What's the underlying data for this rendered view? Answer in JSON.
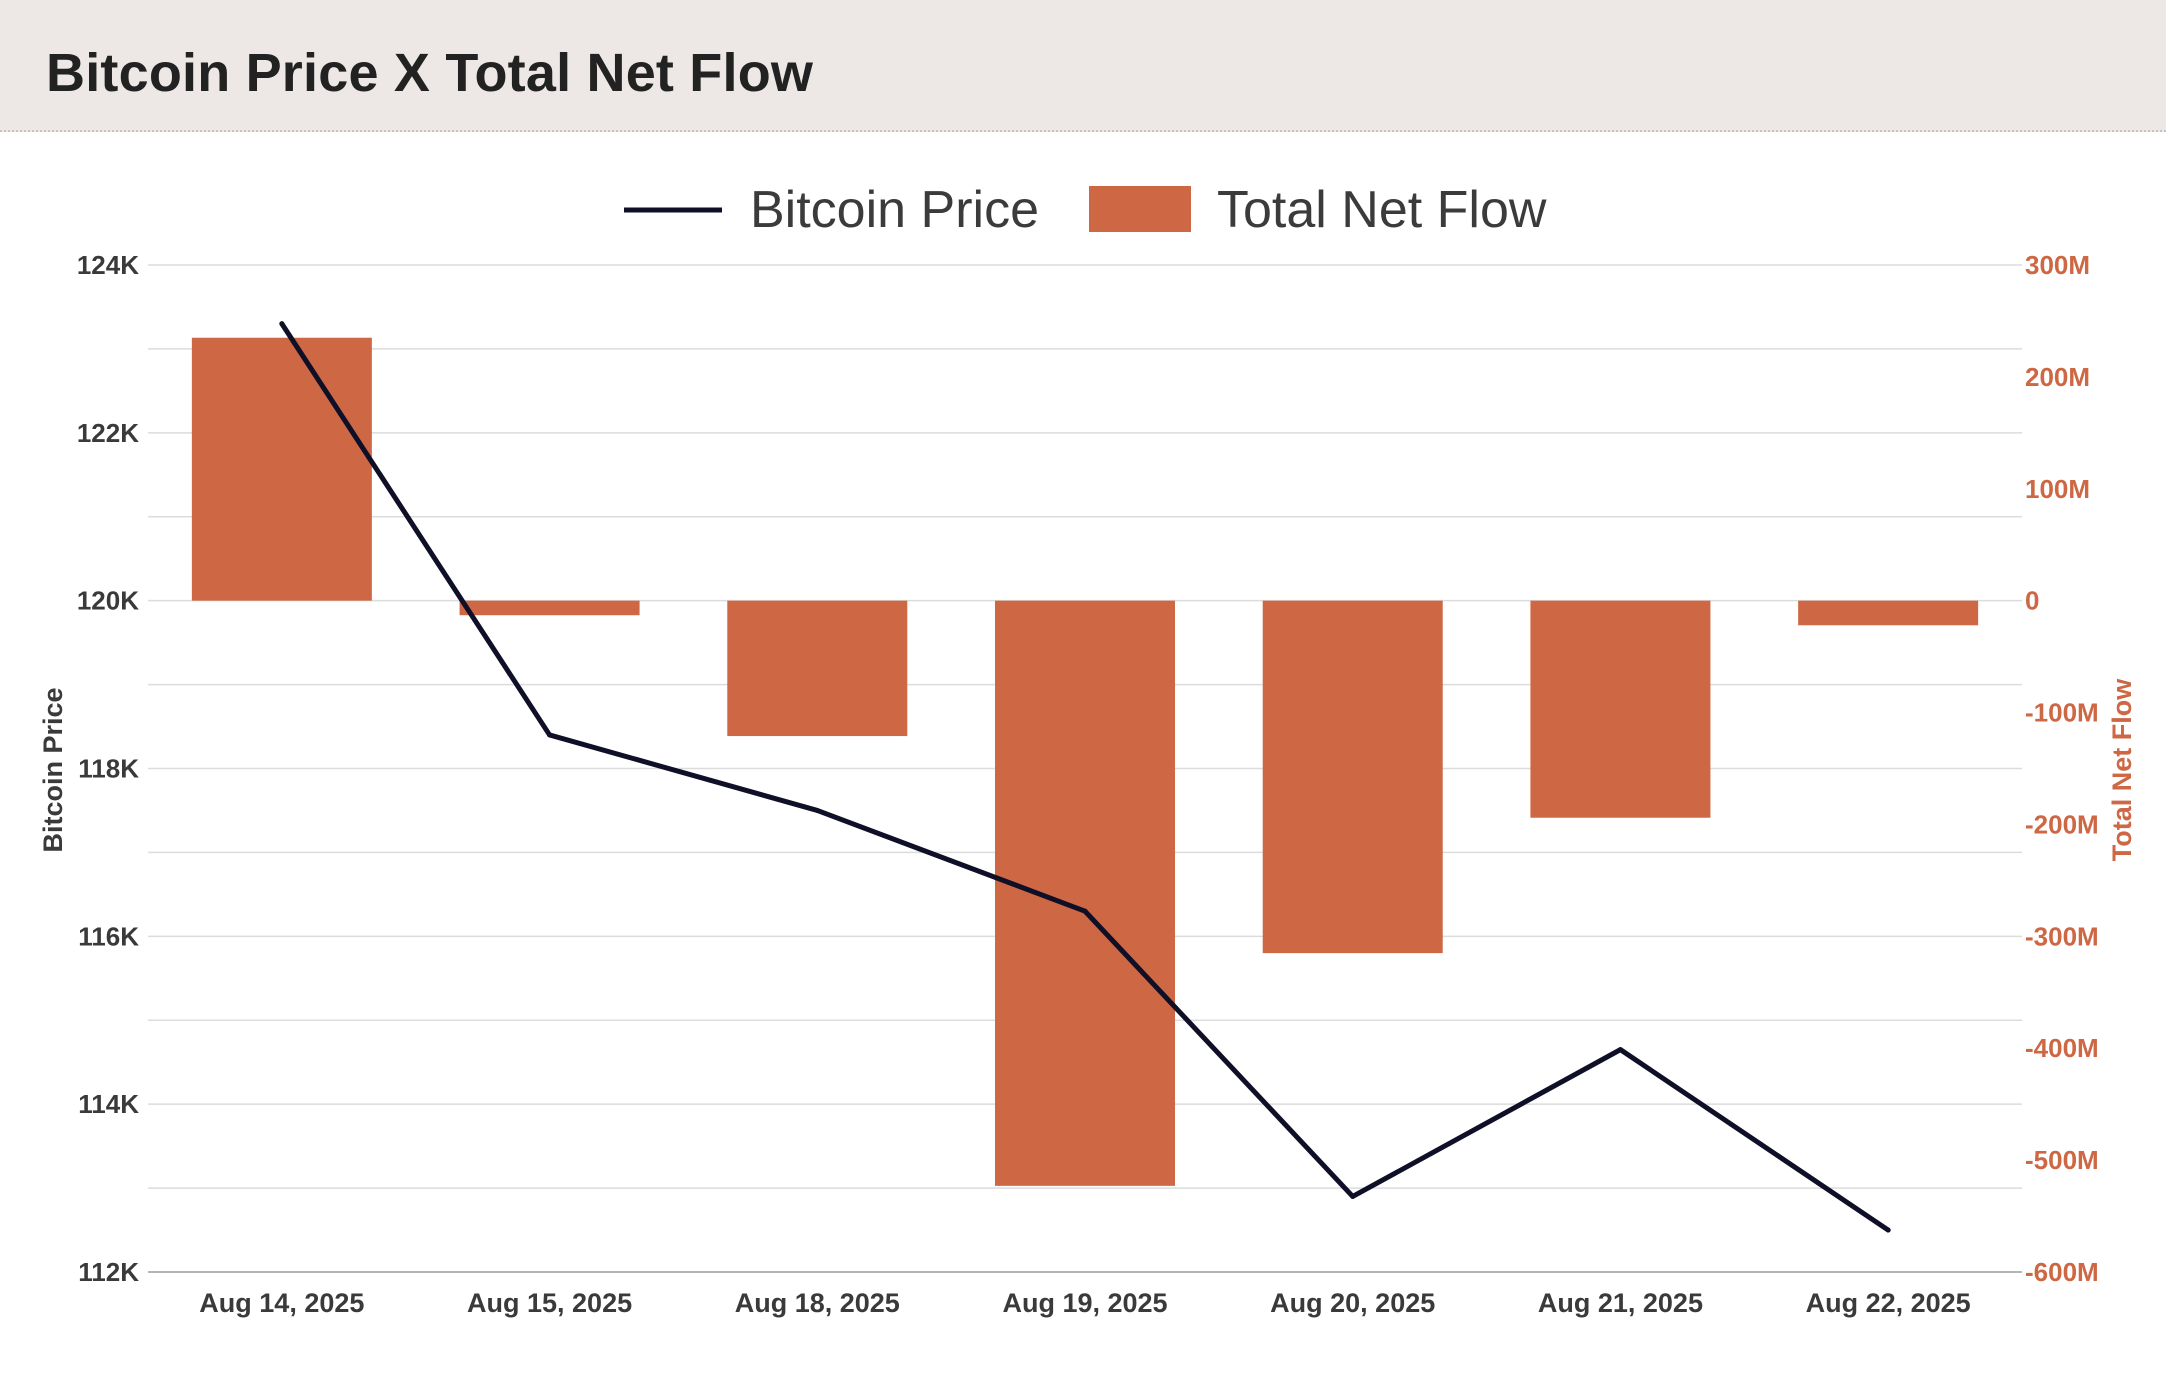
{
  "header": {
    "title": "Bitcoin Price X Total Net Flow"
  },
  "colors": {
    "price_line": "#0f0f28",
    "net_flow": "#cd6744",
    "grid": "#dcdcdc",
    "right_axis": "#cd6744"
  },
  "chart_data": {
    "type": "bar",
    "title": "Bitcoin Price X Total Net Flow",
    "categories": [
      "Aug 14, 2025",
      "Aug 15, 2025",
      "Aug 18, 2025",
      "Aug 19, 2025",
      "Aug 20, 2025",
      "Aug 21, 2025",
      "Aug 22, 2025"
    ],
    "series": [
      {
        "name": "Bitcoin Price",
        "type": "line",
        "axis": "left",
        "values": [
          123300,
          118400,
          117500,
          116300,
          112900,
          114650,
          112500
        ]
      },
      {
        "name": "Total Net Flow",
        "type": "bar",
        "axis": "right",
        "values": [
          235000000,
          -13000000,
          -121000000,
          -523000000,
          -315000000,
          -194000000,
          -22000000
        ]
      }
    ],
    "left_axis": {
      "label": "Bitcoin Price",
      "ylim": [
        112000,
        124000
      ],
      "ticks": [
        124000,
        122000,
        120000,
        118000,
        116000,
        114000,
        112000
      ],
      "tick_labels": [
        "124K",
        "122K",
        "120K",
        "118K",
        "116K",
        "114K",
        "112K"
      ]
    },
    "right_axis": {
      "label": "Total Net Flow",
      "ylim": [
        -600000000,
        300000000
      ],
      "ticks": [
        300000000,
        200000000,
        100000000,
        0,
        -100000000,
        -200000000,
        -300000000,
        -400000000,
        -500000000,
        -600000000
      ],
      "tick_labels": [
        "300M",
        "200M",
        "100M",
        "0",
        "-100M",
        "-200M",
        "-300M",
        "-400M",
        "-500M",
        "-600M"
      ]
    },
    "legend": {
      "position": "top-center",
      "entries": [
        "Bitcoin Price",
        "Total Net Flow"
      ]
    },
    "grid": true
  }
}
